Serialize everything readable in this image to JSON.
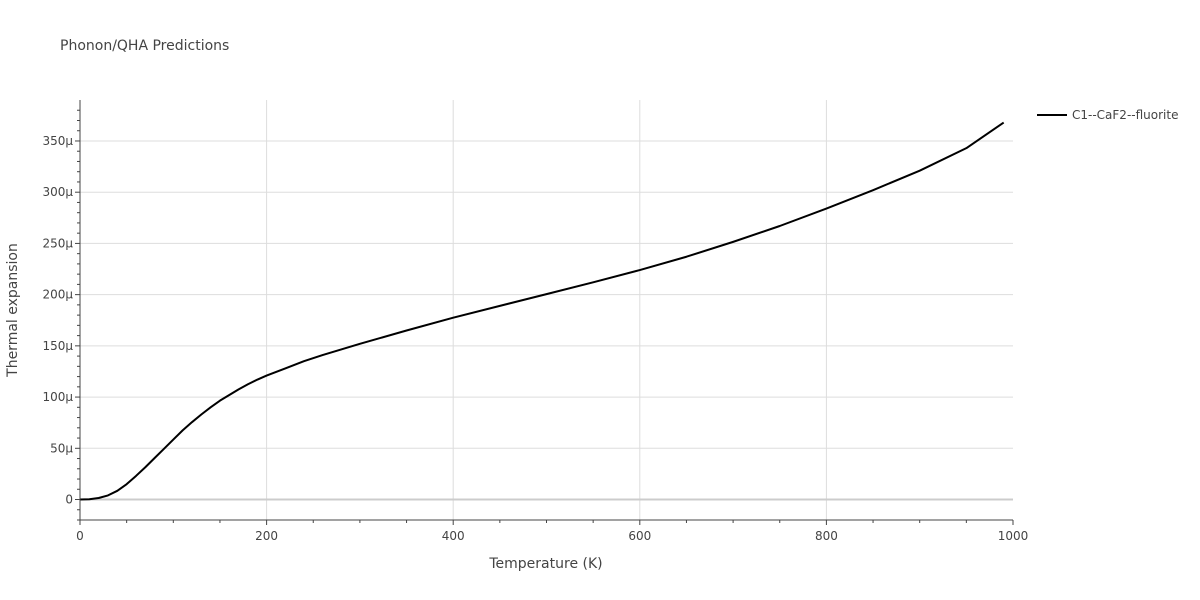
{
  "chart_data": {
    "type": "line",
    "title": "Phonon/QHA Predictions",
    "xlabel": "Temperature (K)",
    "ylabel": "Thermal expansion",
    "xlim": [
      0,
      1000
    ],
    "ylim": [
      -2e-05,
      0.00039
    ],
    "x_ticks": [
      0,
      200,
      400,
      600,
      800,
      1000
    ],
    "x_tick_labels": [
      "0",
      "200",
      "400",
      "600",
      "800",
      "1000"
    ],
    "y_ticks": [
      0,
      5e-05,
      0.0001,
      0.00015,
      0.0002,
      0.00025,
      0.0003,
      0.00035
    ],
    "y_tick_labels": [
      "0",
      "50μ",
      "100μ",
      "150μ",
      "200μ",
      "250μ",
      "300μ",
      "350μ"
    ],
    "grid": true,
    "legend_position": "top-right outside",
    "series": [
      {
        "name": "C1--CaF2--fluorite",
        "color": "#000000",
        "x": [
          0,
          10,
          20,
          30,
          40,
          50,
          60,
          70,
          80,
          90,
          100,
          110,
          120,
          130,
          140,
          150,
          160,
          170,
          180,
          190,
          200,
          220,
          240,
          260,
          280,
          300,
          350,
          400,
          450,
          500,
          550,
          600,
          650,
          700,
          750,
          800,
          850,
          900,
          950,
          990
        ],
        "y": [
          0,
          3e-07,
          1.5e-06,
          4e-06,
          8.5e-06,
          1.5e-05,
          2.3e-05,
          3.15e-05,
          4.05e-05,
          4.95e-05,
          5.85e-05,
          6.75e-05,
          7.55e-05,
          8.3e-05,
          9e-05,
          9.65e-05,
          0.000102,
          0.0001075,
          0.0001125,
          0.000117,
          0.000121,
          0.000128,
          0.000135,
          0.000141,
          0.0001465,
          0.000152,
          0.000165,
          0.0001775,
          0.000189,
          0.0002005,
          0.000212,
          0.000224,
          0.000237,
          0.0002515,
          0.000267,
          0.000284,
          0.000302,
          0.000321,
          0.000343,
          0.000368
        ]
      }
    ]
  }
}
